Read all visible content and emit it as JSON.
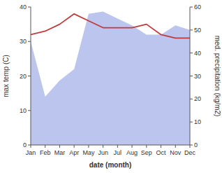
{
  "chart_data": {
    "type": "line",
    "categories": [
      "Jan",
      "Feb",
      "Mar",
      "Apr",
      "May",
      "Jun",
      "Jul",
      "Aug",
      "Sep",
      "Oct",
      "Nov",
      "Dec"
    ],
    "series": [
      {
        "type": "area",
        "color": "#bbc5ee",
        "axis": "y2",
        "values": [
          45,
          21,
          28,
          33,
          57,
          58,
          55,
          52,
          48,
          48,
          52,
          50
        ]
      },
      {
        "type": "line",
        "color": "#c0393b",
        "values": [
          32,
          33,
          35,
          38,
          36,
          34,
          34,
          34,
          35,
          32,
          31,
          31
        ]
      }
    ],
    "xlabel": "date (month)",
    "ylabel": "max temp (C)",
    "y2label": "med. precipitation (kg/m2)",
    "ylim": [
      0,
      40
    ],
    "yticks": [
      0,
      10,
      20,
      30,
      40
    ],
    "y2lim": [
      0,
      60
    ],
    "y2ticks": [
      0,
      10,
      20,
      30,
      40,
      50,
      60
    ],
    "grid": false
  }
}
